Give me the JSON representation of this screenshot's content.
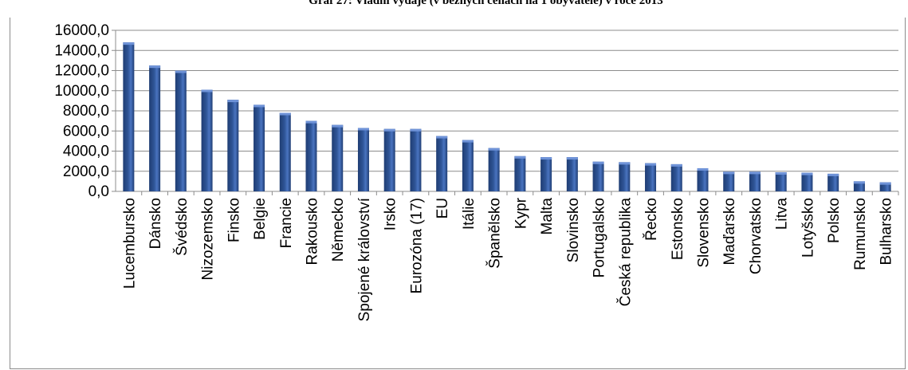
{
  "chart_data": {
    "type": "bar",
    "title": "Graf 27: Vládní výdaje (v běžných cenách na 1 obyvatele) v roce 2013",
    "xlabel": "",
    "ylabel": "",
    "ylim": [
      0,
      16000
    ],
    "yticks": [
      "0,0",
      "2000,0",
      "4000,0",
      "6000,0",
      "8000,0",
      "10000,0",
      "12000,0",
      "14000,0",
      "16000,0"
    ],
    "grid": true,
    "legend": "none",
    "bar_color": "#2f5597",
    "categories": [
      "Lucembursko",
      "Dánsko",
      "Švédsko",
      "Nizozemsko",
      "Finsko",
      "Belgie",
      "Francie",
      "Rakousko",
      "Německo",
      "Spojené království",
      "Irsko",
      "Eurozóna (17)",
      "EU",
      "Itálie",
      "Španělsko",
      "Kypr",
      "Malta",
      "Slovinsko",
      "Portugalsko",
      "Česká republika",
      "Řecko",
      "Estonsko",
      "Slovensko",
      "Maďarsko",
      "Chorvatsko",
      "Litva",
      "Lotyšsko",
      "Polsko",
      "Rumunsko",
      "Bulharsko"
    ],
    "values": [
      14800,
      12500,
      12000,
      10100,
      9100,
      8600,
      7800,
      7000,
      6600,
      6300,
      6200,
      6200,
      5500,
      5100,
      4300,
      3500,
      3400,
      3400,
      2950,
      2900,
      2800,
      2700,
      2300,
      1950,
      1950,
      1900,
      1850,
      1750,
      1000,
      900
    ]
  }
}
